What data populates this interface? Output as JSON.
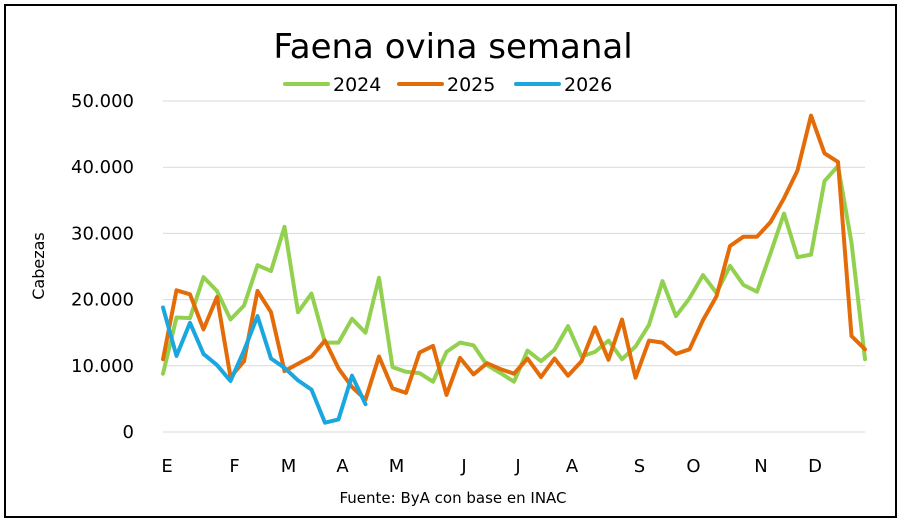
{
  "chart_data": {
    "type": "line",
    "title": "Faena ovina semanal",
    "ylabel": "Cabezas",
    "source": "Fuente: ByA con base en INAC",
    "ylim": [
      0,
      50000
    ],
    "yticks": [
      0,
      10000,
      20000,
      30000,
      40000,
      50000
    ],
    "ytick_labels": [
      "0",
      "10.000",
      "20.000",
      "30.000",
      "40.000",
      "50.000"
    ],
    "month_labels": [
      {
        "label": "E",
        "week": 1
      },
      {
        "label": "F",
        "week": 6
      },
      {
        "label": "M",
        "week": 10
      },
      {
        "label": "A",
        "week": 14
      },
      {
        "label": "M",
        "week": 18
      },
      {
        "label": "J",
        "week": 23
      },
      {
        "label": "J",
        "week": 27
      },
      {
        "label": "A",
        "week": 31
      },
      {
        "label": "S",
        "week": 36
      },
      {
        "label": "O",
        "week": 40
      },
      {
        "label": "N",
        "week": 45
      },
      {
        "label": "D",
        "week": 49
      }
    ],
    "x_range": [
      1,
      53
    ],
    "grid": "horizontal",
    "legend_position": "top",
    "series": [
      {
        "name": "2024",
        "color": "#92d050",
        "values": [
          8800,
          17300,
          17200,
          23400,
          21300,
          17000,
          19100,
          25200,
          24300,
          31000,
          18100,
          20900,
          13500,
          13500,
          17100,
          15000,
          23300,
          9800,
          9100,
          8900,
          7600,
          12100,
          13500,
          13100,
          10100,
          8900,
          7600,
          12300,
          10700,
          12400,
          16000,
          11400,
          12100,
          13800,
          11000,
          12900,
          16200,
          22800,
          17500,
          20200,
          23700,
          21000,
          25100,
          22200,
          21200,
          27000,
          33000,
          26400,
          26800,
          37900,
          40200,
          28600,
          11000
        ]
      },
      {
        "name": "2025",
        "color": "#e36c09",
        "values": [
          11000,
          21400,
          20800,
          15500,
          20400,
          8300,
          10700,
          21300,
          18100,
          9200,
          10300,
          11400,
          13800,
          9600,
          6800,
          4900,
          11400,
          6600,
          5900,
          12000,
          13000,
          5600,
          11200,
          8700,
          10400,
          9500,
          8800,
          11100,
          8300,
          11100,
          8500,
          10700,
          15800,
          10900,
          17000,
          8200,
          13800,
          13500,
          11800,
          12500,
          16900,
          20500,
          28100,
          29500,
          29500,
          31700,
          35300,
          39500,
          47800,
          42100,
          40800,
          14500,
          12500
        ]
      },
      {
        "name": "2026",
        "color": "#1aa7e0",
        "values": [
          18800,
          11500,
          16500,
          11800,
          10100,
          7700,
          12300,
          17500,
          11100,
          9700,
          7800,
          6400,
          1400,
          1900,
          8500,
          4200
        ]
      }
    ]
  }
}
